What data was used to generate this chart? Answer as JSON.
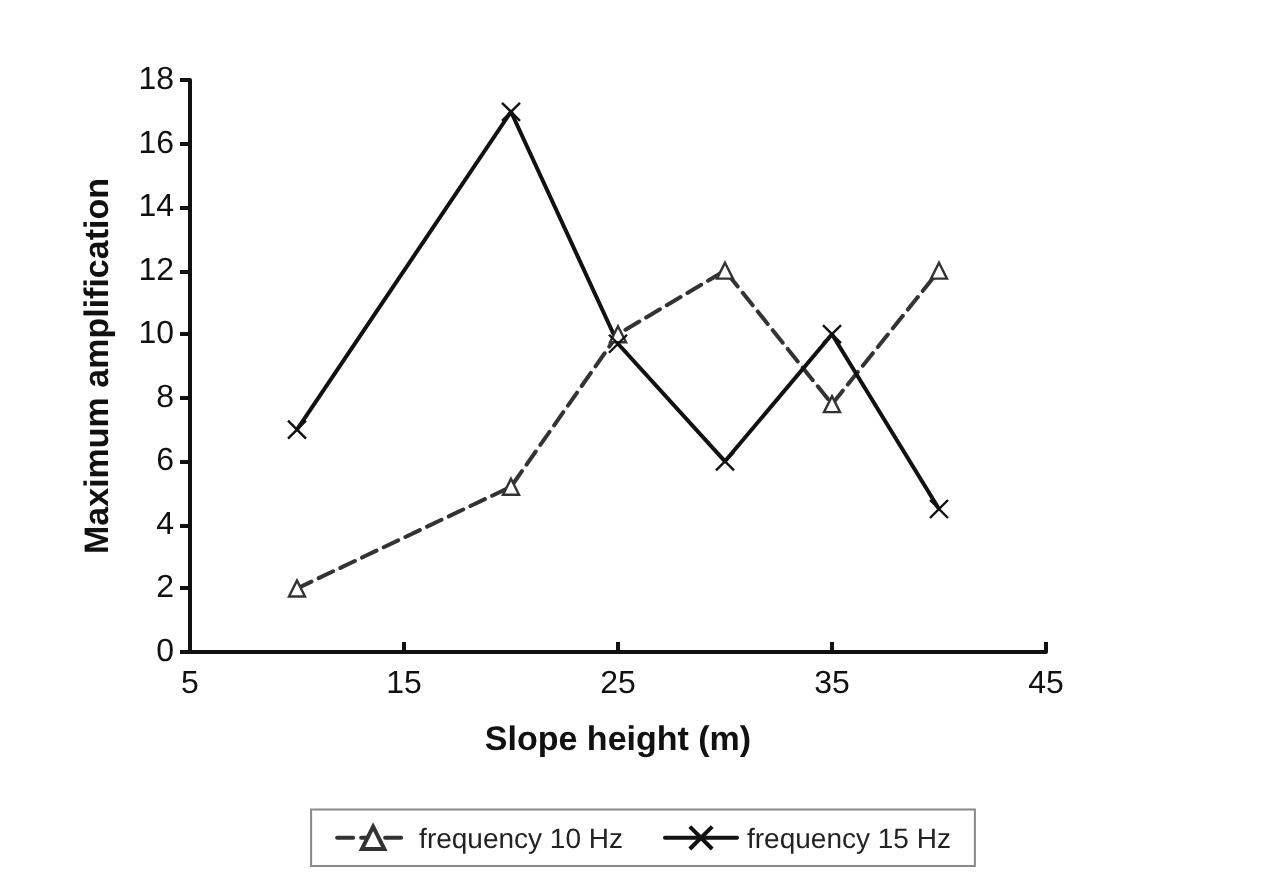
{
  "chart_data": {
    "type": "line",
    "xlabel": "Slope height (m)",
    "ylabel": "Maximum amplification",
    "x": [
      10,
      20,
      25,
      30,
      35,
      40
    ],
    "series": [
      {
        "name": "frequency 10 Hz",
        "color": "#333333",
        "values": [
          2,
          5.2,
          10,
          12,
          7.8,
          12
        ],
        "marker": "triangle",
        "line_style": "dashed"
      },
      {
        "name": "frequency 15 Hz",
        "color": "#111111",
        "values": [
          7,
          17,
          9.7,
          6,
          10,
          4.5
        ],
        "marker": "cross",
        "line_style": "solid"
      }
    ],
    "xlim": [
      5,
      45
    ],
    "xticks": [
      5,
      15,
      25,
      35,
      45
    ],
    "ylim": [
      0,
      18
    ],
    "yticks": [
      0,
      2,
      4,
      6,
      8,
      10,
      12,
      14,
      16,
      18
    ],
    "grid": false,
    "legend": "bottom"
  }
}
